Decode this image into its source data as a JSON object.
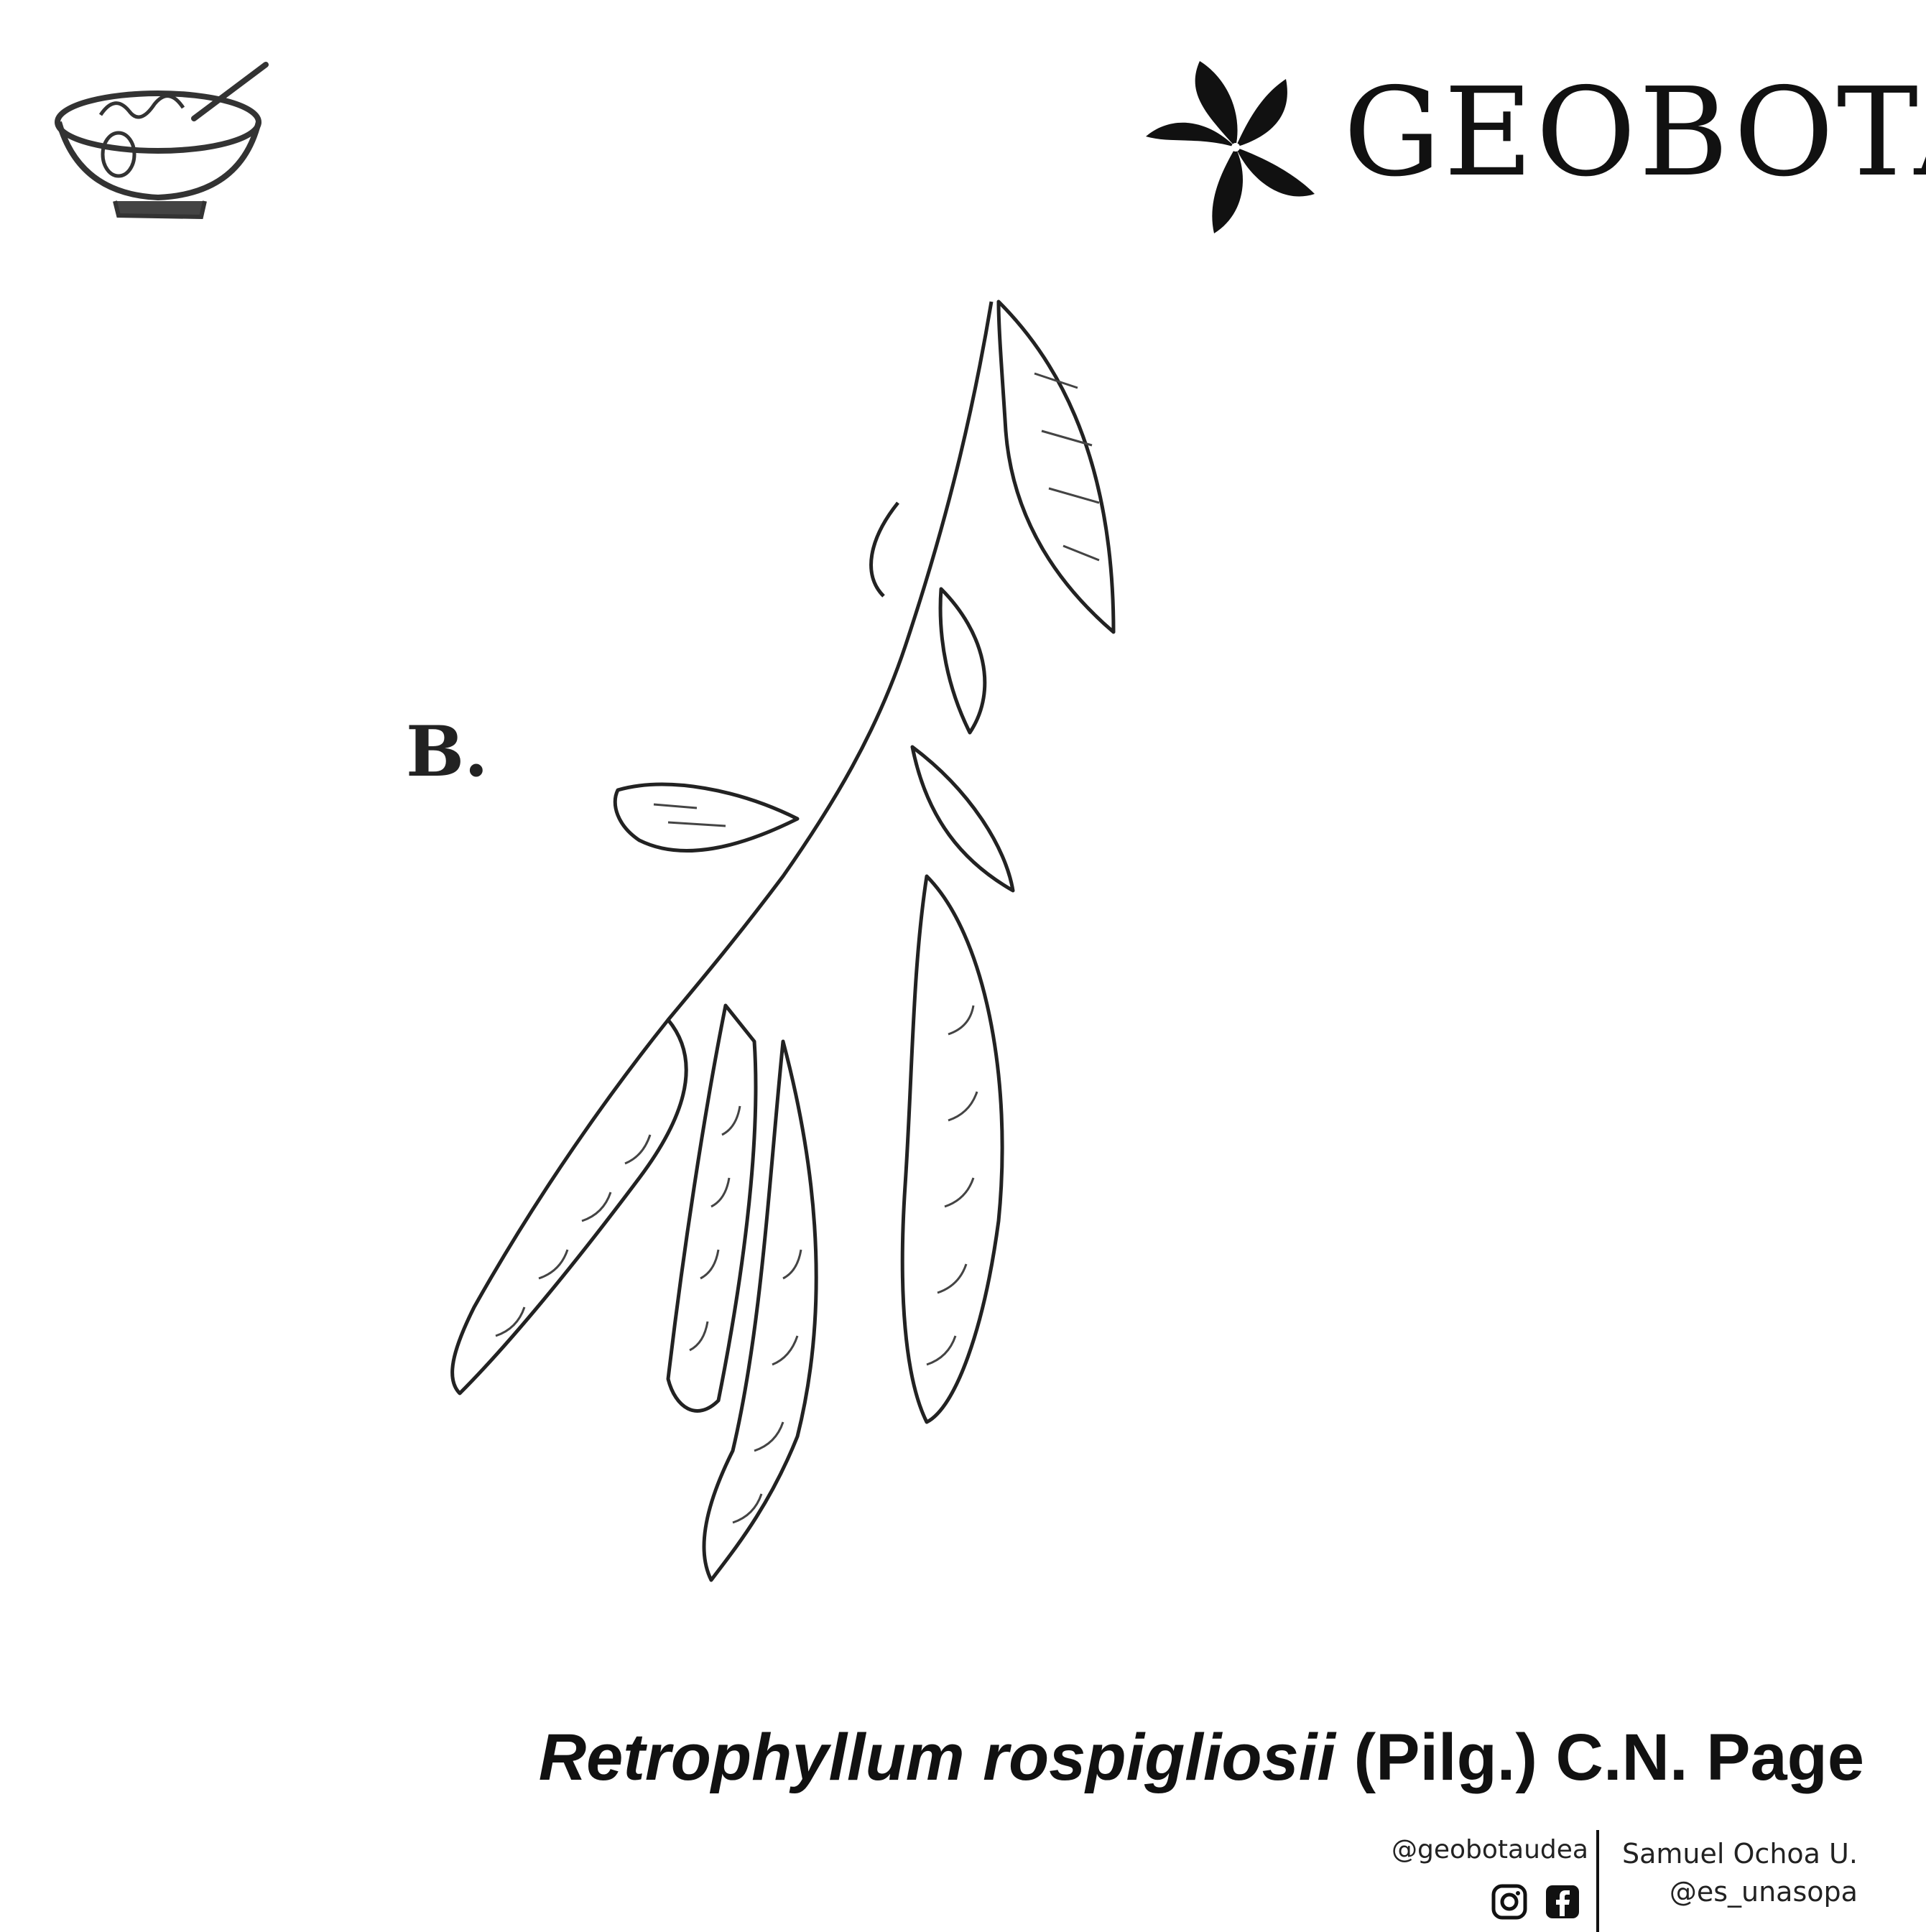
{
  "brand": {
    "name": "GEOBOTA"
  },
  "plate": {
    "letter": "B."
  },
  "caption": {
    "genus_species": "Retrophyllum rospigliosii",
    "authority": " (Pilg.) C.N. Page"
  },
  "credits": {
    "account": "@geobotaudea",
    "social_icons": [
      "instagram-icon",
      "facebook-icon"
    ],
    "author_name": "Samuel Ochoa U.",
    "author_handle": "@es_unasopa"
  },
  "colors": {
    "ink": "#111111",
    "background": "#ffffff"
  }
}
